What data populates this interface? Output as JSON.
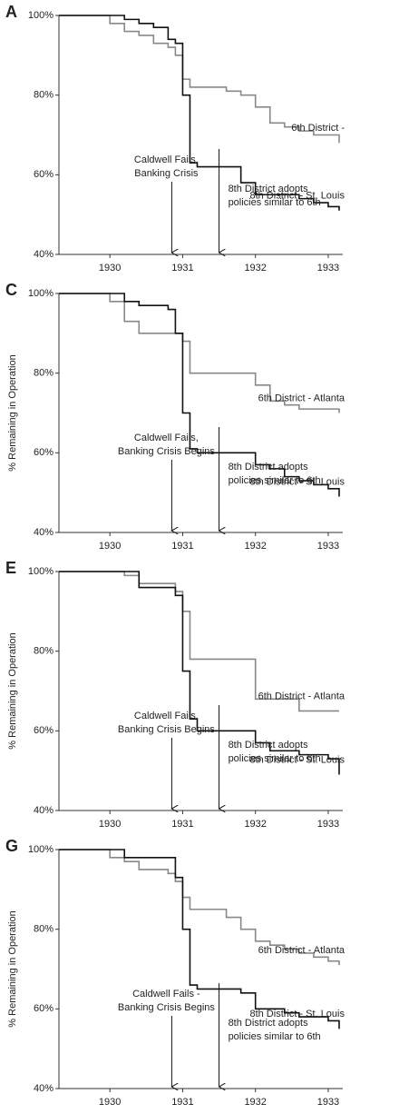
{
  "chart_data": [
    {
      "type": "line",
      "step": true,
      "panel": "A",
      "x": [
        1929.3,
        1930.0,
        1930.2,
        1930.4,
        1930.6,
        1930.8,
        1930.9,
        1931.0,
        1931.1,
        1931.2,
        1931.4,
        1931.6,
        1931.8,
        1932.0,
        1932.2,
        1932.4,
        1932.6,
        1932.8,
        1933.0,
        1933.15
      ],
      "xlim": [
        1929.3,
        1933.2
      ],
      "xticks": [
        1930,
        1931,
        1932,
        1933
      ],
      "ylim": [
        40,
        100
      ],
      "yticks": [
        {
          "value": 40,
          "label": "40%"
        },
        {
          "value": 60,
          "label": "60%"
        },
        {
          "value": 80,
          "label": "80%"
        },
        {
          "value": 100,
          "label": "100%"
        }
      ],
      "series": [
        {
          "name": "6th District -",
          "color": "#888888",
          "values": [
            100,
            98,
            96,
            95,
            93,
            92,
            90,
            84,
            82,
            82,
            82,
            81,
            80,
            77,
            73,
            72,
            71,
            70,
            70,
            68
          ]
        },
        {
          "name": "8th District - St. Louis",
          "color": "#111111",
          "values": [
            100,
            100,
            99,
            98,
            97,
            94,
            93,
            80,
            63,
            62,
            62,
            62,
            58,
            55,
            55,
            55,
            54,
            53,
            52,
            51
          ]
        }
      ],
      "annotations": [
        {
          "lines": [
            "Caldwell Fails,",
            "Banking Crisis"
          ],
          "x": 1930.85
        },
        {
          "lines": [
            "8th District adopts",
            "policies similar to 6th"
          ],
          "x": 1931.5
        }
      ]
    },
    {
      "type": "line",
      "step": true,
      "panel": "C",
      "ylabel": "% Remaining in Operation",
      "x": [
        1929.3,
        1930.0,
        1930.2,
        1930.4,
        1930.6,
        1930.8,
        1930.9,
        1931.0,
        1931.1,
        1931.2,
        1931.4,
        1931.6,
        1931.8,
        1932.0,
        1932.2,
        1932.4,
        1932.6,
        1932.8,
        1933.0,
        1933.15
      ],
      "xlim": [
        1929.3,
        1933.2
      ],
      "xticks": [
        1930,
        1931,
        1932,
        1933
      ],
      "ylim": [
        40,
        100
      ],
      "yticks": [
        {
          "value": 40,
          "label": "40%"
        },
        {
          "value": 60,
          "label": "60%"
        },
        {
          "value": 80,
          "label": "80%"
        },
        {
          "value": 100,
          "label": "100%"
        }
      ],
      "series": [
        {
          "name": "6th District - Atlanta",
          "color": "#888888",
          "values": [
            100,
            98,
            93,
            90,
            90,
            90,
            90,
            88,
            80,
            80,
            80,
            80,
            80,
            77,
            73,
            72,
            71,
            71,
            71,
            70
          ]
        },
        {
          "name": "8th District - St. Louis",
          "color": "#111111",
          "values": [
            100,
            100,
            98,
            97,
            97,
            96,
            90,
            70,
            61,
            60,
            60,
            60,
            60,
            57,
            56,
            54,
            53,
            52,
            51,
            49
          ]
        }
      ],
      "annotations": [
        {
          "lines": [
            "Caldwell Fails,",
            "Banking Crisis Begins"
          ],
          "x": 1930.85
        },
        {
          "lines": [
            "8th District adopts",
            "policies similar to 6th"
          ],
          "x": 1931.5
        }
      ]
    },
    {
      "type": "line",
      "step": true,
      "panel": "E",
      "ylabel": "% Remaining in Operation",
      "x": [
        1929.3,
        1930.0,
        1930.2,
        1930.4,
        1930.6,
        1930.8,
        1930.9,
        1931.0,
        1931.1,
        1931.2,
        1931.4,
        1931.6,
        1931.8,
        1932.0,
        1932.2,
        1932.4,
        1932.6,
        1932.8,
        1933.0,
        1933.15
      ],
      "xlim": [
        1929.3,
        1933.2
      ],
      "xticks": [
        1930,
        1931,
        1932,
        1933
      ],
      "ylim": [
        40,
        100
      ],
      "yticks": [
        {
          "value": 40,
          "label": "40%"
        },
        {
          "value": 60,
          "label": "60%"
        },
        {
          "value": 80,
          "label": "80%"
        },
        {
          "value": 100,
          "label": "100%"
        }
      ],
      "series": [
        {
          "name": "6th District - Atlanta",
          "color": "#888888",
          "values": [
            100,
            100,
            99,
            97,
            97,
            97,
            95,
            90,
            78,
            78,
            78,
            78,
            78,
            68,
            68,
            68,
            65,
            65,
            65,
            65
          ]
        },
        {
          "name": "8th District - St. Louis",
          "color": "#111111",
          "values": [
            100,
            100,
            100,
            96,
            96,
            96,
            94,
            75,
            63,
            60,
            60,
            60,
            60,
            57,
            55,
            55,
            54,
            54,
            53,
            49
          ]
        }
      ],
      "annotations": [
        {
          "lines": [
            "Caldwell Fails,",
            "Banking Crisis Begins"
          ],
          "x": 1930.85
        },
        {
          "lines": [
            "8th District adopts",
            "policies similar to 6th"
          ],
          "x": 1931.5
        }
      ]
    },
    {
      "type": "line",
      "step": true,
      "panel": "G",
      "ylabel": "% Remaining in Operation",
      "x": [
        1929.3,
        1930.0,
        1930.2,
        1930.4,
        1930.6,
        1930.8,
        1930.9,
        1931.0,
        1931.1,
        1931.2,
        1931.4,
        1931.6,
        1931.8,
        1932.0,
        1932.2,
        1932.4,
        1932.6,
        1932.8,
        1933.0,
        1933.15
      ],
      "xlim": [
        1929.3,
        1933.2
      ],
      "xticks": [
        1930,
        1931,
        1932,
        1933
      ],
      "ylim": [
        40,
        100
      ],
      "yticks": [
        {
          "value": 40,
          "label": "40%"
        },
        {
          "value": 60,
          "label": "60%"
        },
        {
          "value": 80,
          "label": "80%"
        },
        {
          "value": 100,
          "label": "100%"
        }
      ],
      "series": [
        {
          "name": "6th District - Atlanta",
          "color": "#888888",
          "values": [
            100,
            98,
            97,
            95,
            95,
            94,
            92,
            88,
            85,
            85,
            85,
            83,
            80,
            77,
            76,
            75,
            74,
            73,
            72,
            71
          ]
        },
        {
          "name": "8th District - St. Louis",
          "color": "#111111",
          "values": [
            100,
            100,
            98,
            98,
            98,
            98,
            93,
            80,
            66,
            65,
            65,
            65,
            64,
            60,
            60,
            59,
            58,
            58,
            57,
            55
          ]
        }
      ],
      "annotations": [
        {
          "lines": [
            "Caldwell Fails -",
            "Banking Crisis Begins"
          ],
          "x": 1930.85
        },
        {
          "lines": [
            "8th District adopts",
            "policies similar to 6th"
          ],
          "x": 1931.5
        }
      ]
    }
  ]
}
